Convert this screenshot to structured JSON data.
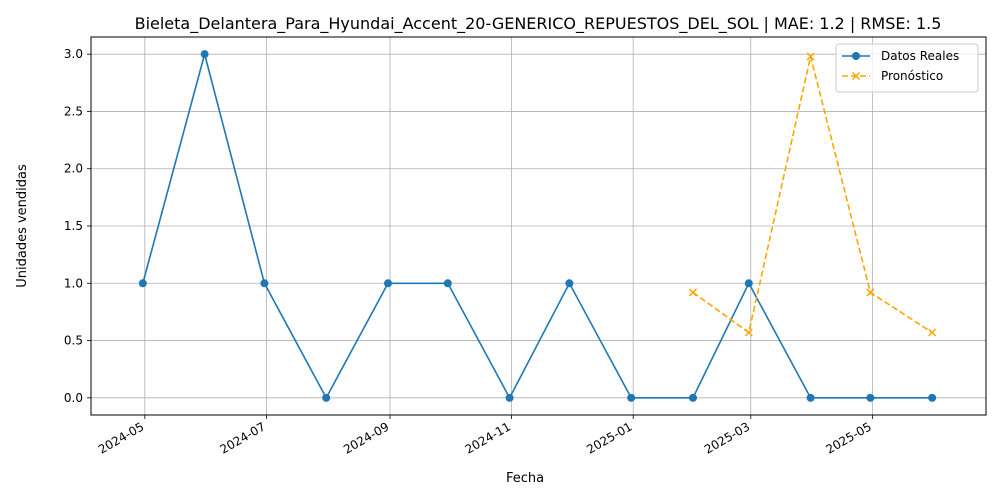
{
  "chart_data": {
    "type": "line",
    "title": "Bieleta_Delantera_Para_Hyundai_Accent_20-GENERICO_REPUESTOS_DEL_SOL | MAE: 1.2 | RMSE: 1.5",
    "xlabel": "Fecha",
    "ylabel": "Unidades vendidas",
    "ylim": [
      -0.15,
      3.15
    ],
    "xlim": [
      "2024-04-04",
      "2025-06-27"
    ],
    "grid": true,
    "legend_position": "top-right",
    "y_ticks": [
      "0.0",
      "0.5",
      "1.0",
      "1.5",
      "2.0",
      "2.5",
      "3.0"
    ],
    "x_ticks": [
      "2024-05",
      "2024-07",
      "2024-09",
      "2024-11",
      "2025-01",
      "2025-03",
      "2025-05"
    ],
    "series": [
      {
        "name": "Datos Reales",
        "color": "#1f77b4",
        "style": "solid",
        "marker": "circle",
        "x": [
          "2024-04-30",
          "2024-05-31",
          "2024-06-30",
          "2024-07-31",
          "2024-08-31",
          "2024-09-30",
          "2024-10-31",
          "2024-11-30",
          "2024-12-31",
          "2025-01-31",
          "2025-02-28",
          "2025-03-31",
          "2025-04-30",
          "2025-05-31"
        ],
        "values": [
          1,
          3,
          1,
          0,
          1,
          1,
          0,
          1,
          0,
          0,
          1,
          0,
          0,
          0
        ]
      },
      {
        "name": "Pronóstico",
        "color": "#ffa500",
        "style": "dashed",
        "marker": "x",
        "x": [
          "2025-01-31",
          "2025-02-28",
          "2025-03-31",
          "2025-04-30",
          "2025-05-31"
        ],
        "values": [
          0.92,
          0.57,
          2.98,
          0.92,
          0.57
        ]
      }
    ]
  }
}
